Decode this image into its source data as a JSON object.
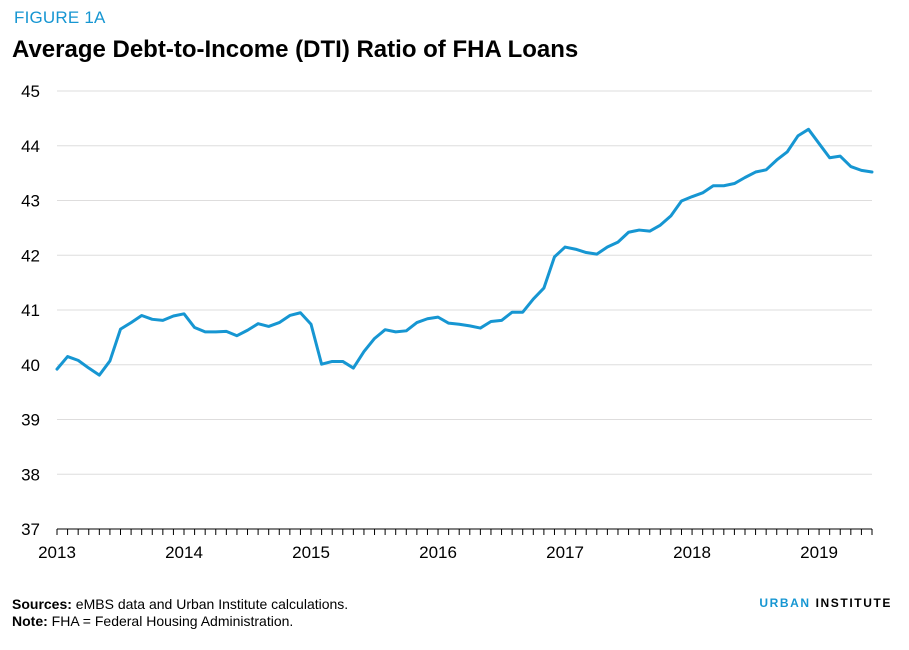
{
  "figure_label": "FIGURE 1A",
  "chart_data": {
    "type": "line",
    "title": "Average Debt-to-Income (DTI) Ratio of FHA Loans",
    "xlabel": "",
    "ylabel": "",
    "x_ticks": [
      "2013",
      "2014",
      "2015",
      "2016",
      "2017",
      "2018",
      "2019"
    ],
    "y_ticks": [
      37,
      38,
      39,
      40,
      41,
      42,
      43,
      44,
      45
    ],
    "xlim": [
      "2013-01",
      "2019-06"
    ],
    "ylim": [
      37,
      45
    ],
    "grid": "horizontal",
    "line_color": "#1696d2",
    "series": [
      {
        "x": [
          "2013-01",
          "2013-02",
          "2013-03",
          "2013-04",
          "2013-05",
          "2013-06",
          "2013-07",
          "2013-08",
          "2013-09",
          "2013-10",
          "2013-11",
          "2013-12",
          "2014-01",
          "2014-02",
          "2014-03",
          "2014-04",
          "2014-05",
          "2014-06",
          "2014-07",
          "2014-08",
          "2014-09",
          "2014-10",
          "2014-11",
          "2014-12",
          "2015-01",
          "2015-02",
          "2015-03",
          "2015-04",
          "2015-05",
          "2015-06",
          "2015-07",
          "2015-08",
          "2015-09",
          "2015-10",
          "2015-11",
          "2015-12",
          "2016-01",
          "2016-02",
          "2016-03",
          "2016-04",
          "2016-05",
          "2016-06",
          "2016-07",
          "2016-08",
          "2016-09",
          "2016-10",
          "2016-11",
          "2016-12",
          "2017-01",
          "2017-02",
          "2017-03",
          "2017-04",
          "2017-05",
          "2017-06",
          "2017-07",
          "2017-08",
          "2017-09",
          "2017-10",
          "2017-11",
          "2017-12",
          "2018-01",
          "2018-02",
          "2018-03",
          "2018-04",
          "2018-05",
          "2018-06",
          "2018-07",
          "2018-08",
          "2018-09",
          "2018-10",
          "2018-11",
          "2018-12",
          "2019-01",
          "2019-02",
          "2019-03",
          "2019-04",
          "2019-05",
          "2019-06"
        ],
        "values": [
          39.92,
          40.15,
          40.08,
          39.94,
          39.81,
          40.07,
          40.65,
          40.77,
          40.9,
          40.83,
          40.81,
          40.89,
          40.93,
          40.68,
          40.6,
          40.6,
          40.61,
          40.53,
          40.63,
          40.75,
          40.7,
          40.77,
          40.9,
          40.95,
          40.74,
          40.01,
          40.06,
          40.06,
          39.94,
          40.24,
          40.48,
          40.64,
          40.6,
          40.62,
          40.77,
          40.84,
          40.87,
          40.76,
          40.74,
          40.71,
          40.67,
          40.79,
          40.81,
          40.96,
          40.96,
          41.2,
          41.4,
          41.97,
          42.15,
          42.11,
          42.05,
          42.02,
          42.15,
          42.24,
          42.42,
          42.46,
          42.44,
          42.55,
          42.72,
          42.99,
          43.07,
          43.14,
          43.27,
          43.27,
          43.31,
          43.42,
          43.52,
          43.56,
          43.74,
          43.89,
          44.18,
          44.3,
          44.04,
          43.78,
          43.81,
          43.62,
          43.55,
          43.52
        ]
      }
    ]
  },
  "footer": {
    "sources_label": "Sources:",
    "sources_text": " eMBS data and Urban Institute calculations.",
    "note_label": "Note:",
    "note_text": " FHA = Federal Housing Administration."
  },
  "brand": {
    "part1": "URBAN",
    "part2": " INSTITUTE"
  }
}
